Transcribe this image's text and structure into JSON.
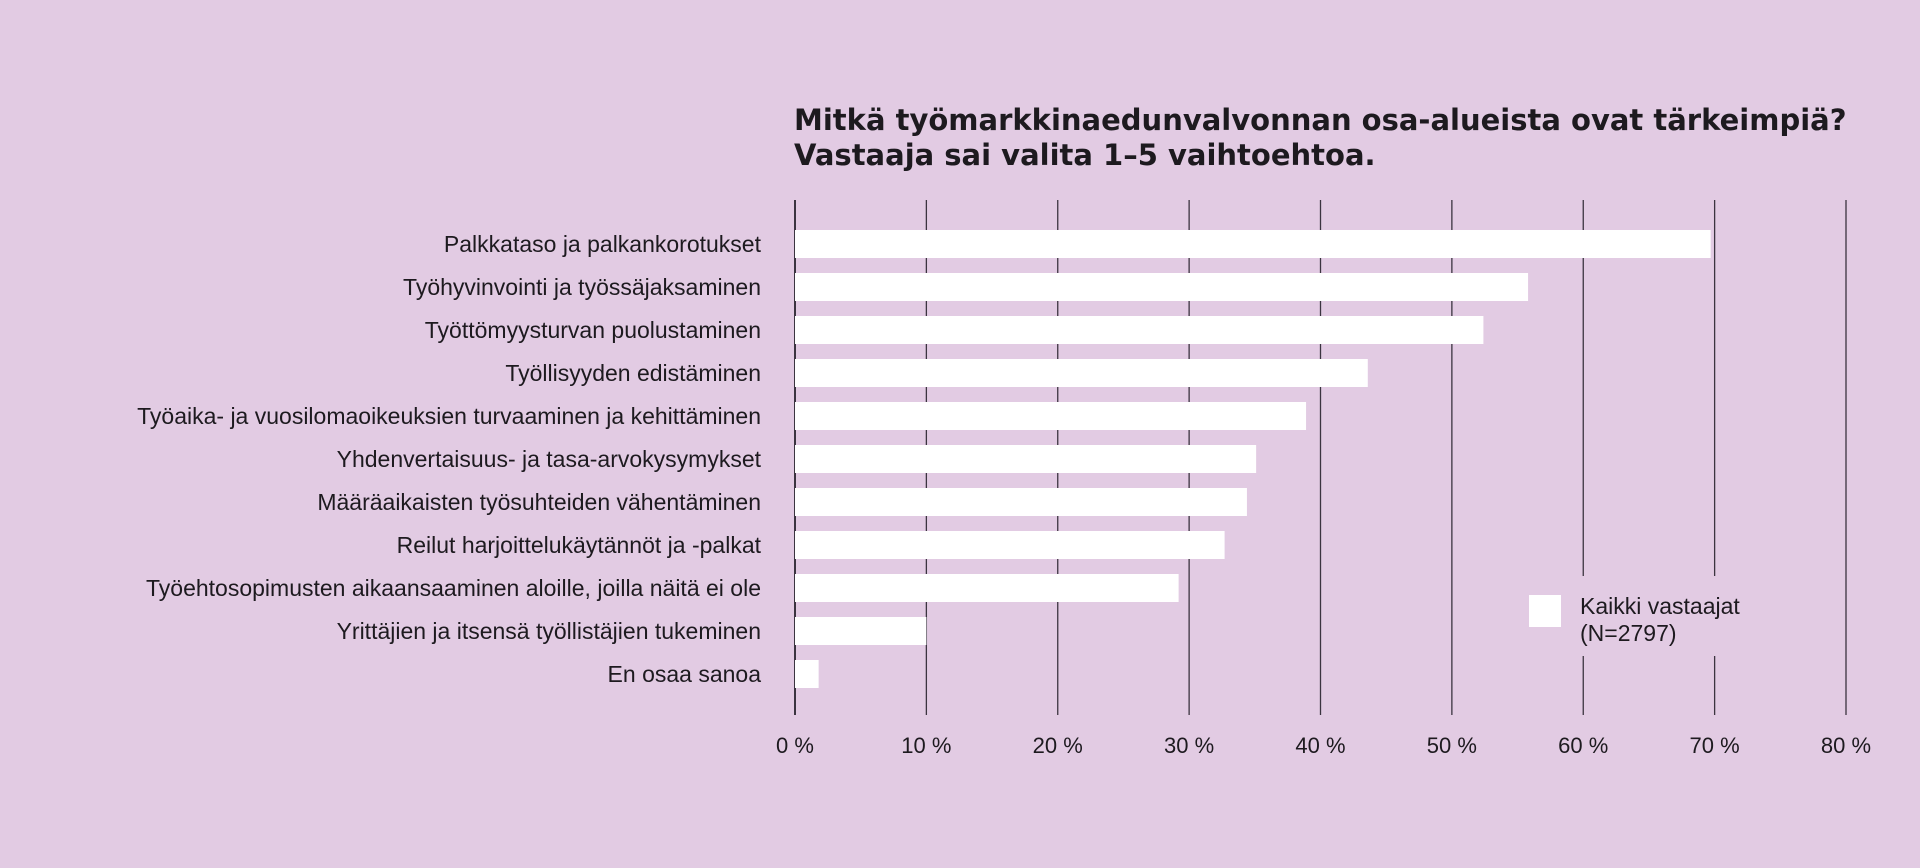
{
  "chart_data": {
    "type": "bar",
    "orientation": "horizontal",
    "title_lines": [
      "Mitkä työmarkkinaedunvalvonnan osa-alueista ovat tärkeimpiä?",
      "Vastaaja sai valita 1–5 vaihtoehtoa."
    ],
    "categories": [
      "Palkkataso ja palkankorotukset",
      "Työhyvinvointi ja työssäjaksaminen",
      "Työttömyysturvan puolustaminen",
      "Työllisyyden edistäminen",
      "Työaika- ja vuosilomaoikeuksien turvaaminen ja kehittäminen",
      "Yhdenvertaisuus- ja tasa-arvokysymykset",
      "Määräaikaisten työsuhteiden vähentäminen",
      "Reilut harjoittelukäytännöt ja -palkat",
      "Työehtosopimusten aikaansaaminen aloille, joilla näitä ei ole",
      "Yrittäjien ja itsensä työllistäjien tukeminen",
      "En osaa sanoa"
    ],
    "series": [
      {
        "name_lines": [
          "Kaikki vastaajat",
          "(N=2797)"
        ],
        "values": [
          69.7,
          55.8,
          52.4,
          43.6,
          38.9,
          35.1,
          34.4,
          32.7,
          29.2,
          10.0,
          1.8
        ]
      }
    ],
    "xlim": [
      0,
      80
    ],
    "x_ticks": [
      0,
      10,
      20,
      30,
      40,
      50,
      60,
      70,
      80
    ],
    "x_tick_labels": [
      "0 %",
      "10 %",
      "20 %",
      "30 %",
      "40 %",
      "50 %",
      "60 %",
      "70 %",
      "80 %"
    ],
    "grid": "vertical",
    "legend_position": "bottom-right",
    "colors": {
      "background": "#e2cbe3",
      "bar": "#ffffff",
      "gridline": "#3b3440",
      "text": "#1d1a1f"
    }
  }
}
